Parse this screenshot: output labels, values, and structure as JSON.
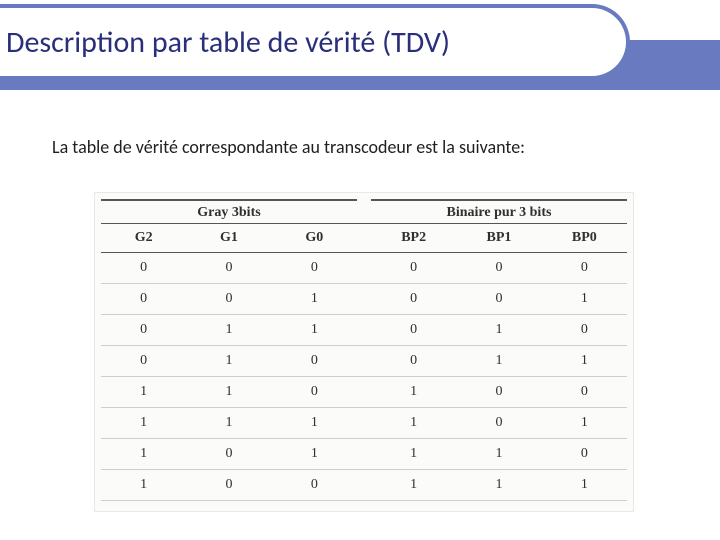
{
  "colors": {
    "band": "#6a7ac0",
    "title_text": "#2a2f7a",
    "table_border": "#555555",
    "row_line": "#cfcfc8",
    "table_bg": "#fbfbfa"
  },
  "title": "Description par table de vérité (TDV)",
  "subtitle": "La table de vérité correspondante au transcodeur est la suivante:",
  "table": {
    "group_left_label": "Gray 3bits",
    "group_right_label": "Binaire pur 3 bits",
    "columns_left": [
      "G2",
      "G1",
      "G0"
    ],
    "columns_right": [
      "BP2",
      "BP1",
      "BP0"
    ],
    "rows": [
      [
        "0",
        "0",
        "0",
        "0",
        "0",
        "0"
      ],
      [
        "0",
        "0",
        "1",
        "0",
        "0",
        "1"
      ],
      [
        "0",
        "1",
        "1",
        "0",
        "1",
        "0"
      ],
      [
        "0",
        "1",
        "0",
        "0",
        "1",
        "1"
      ],
      [
        "1",
        "1",
        "0",
        "1",
        "0",
        "0"
      ],
      [
        "1",
        "1",
        "1",
        "1",
        "0",
        "1"
      ],
      [
        "1",
        "0",
        "1",
        "1",
        "1",
        "0"
      ],
      [
        "1",
        "0",
        "0",
        "1",
        "1",
        "1"
      ]
    ]
  },
  "title_fontsize": 30,
  "subtitle_fontsize": 18,
  "table_fontsize": 14
}
